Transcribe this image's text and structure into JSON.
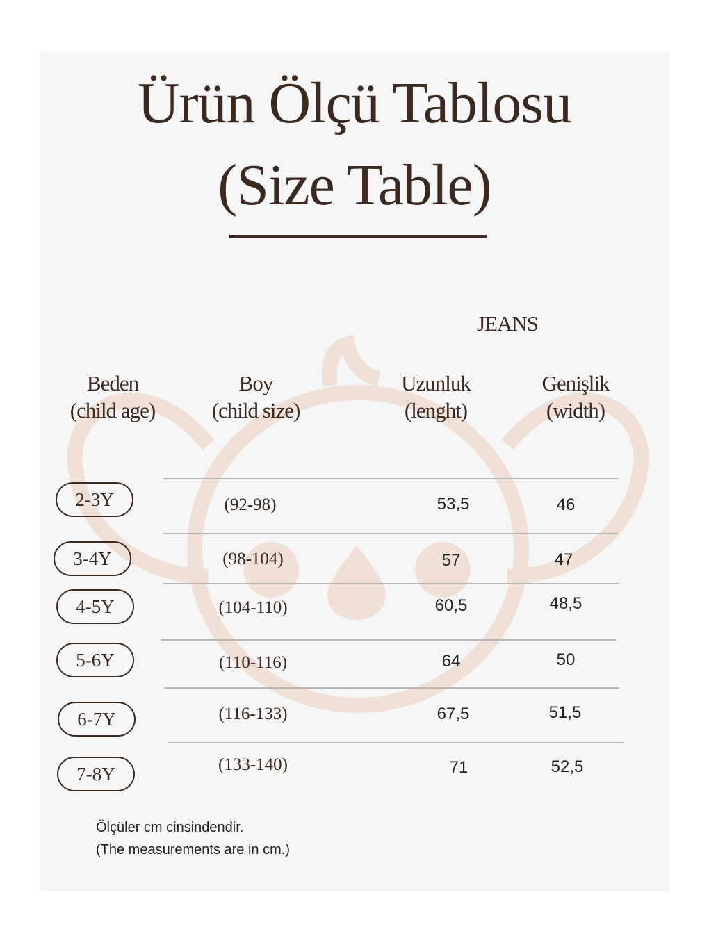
{
  "title_line1": "Ürün Ölçü Tablosu",
  "title_line2": "(Size Table)",
  "category": "JEANS",
  "headers": {
    "age": [
      "Beden",
      "(child age)"
    ],
    "size": [
      "Boy",
      "(child size)"
    ],
    "length": [
      "Uzunluk",
      "(lenght)"
    ],
    "width": [
      "Genişlik",
      "(width)"
    ]
  },
  "rows": [
    {
      "age": "2-3Y",
      "size": "(92-98)",
      "length": "53,5",
      "width": "46"
    },
    {
      "age": "3-4Y",
      "size": "(98-104)",
      "length": "57",
      "width": "47"
    },
    {
      "age": "4-5Y",
      "size": "(104-110)",
      "length": "60,5",
      "width": "48,5"
    },
    {
      "age": "5-6Y",
      "size": "(110-116)",
      "length": "64",
      "width": "50"
    },
    {
      "age": "6-7Y",
      "size": "(116-133)",
      "length": "67,5",
      "width": "51,5"
    },
    {
      "age": "7-8Y",
      "size": "(133-140)",
      "length": "71",
      "width": "52,5"
    }
  ],
  "note_line1": "Ölçüler cm cinsindendir.",
  "note_line2": "(The measurements are in cm.)",
  "colors": {
    "text": "#3a2a22",
    "panel": "#f6f6f6",
    "watermark": "#f0e0d8"
  },
  "watermark_icon": "koala-icon"
}
